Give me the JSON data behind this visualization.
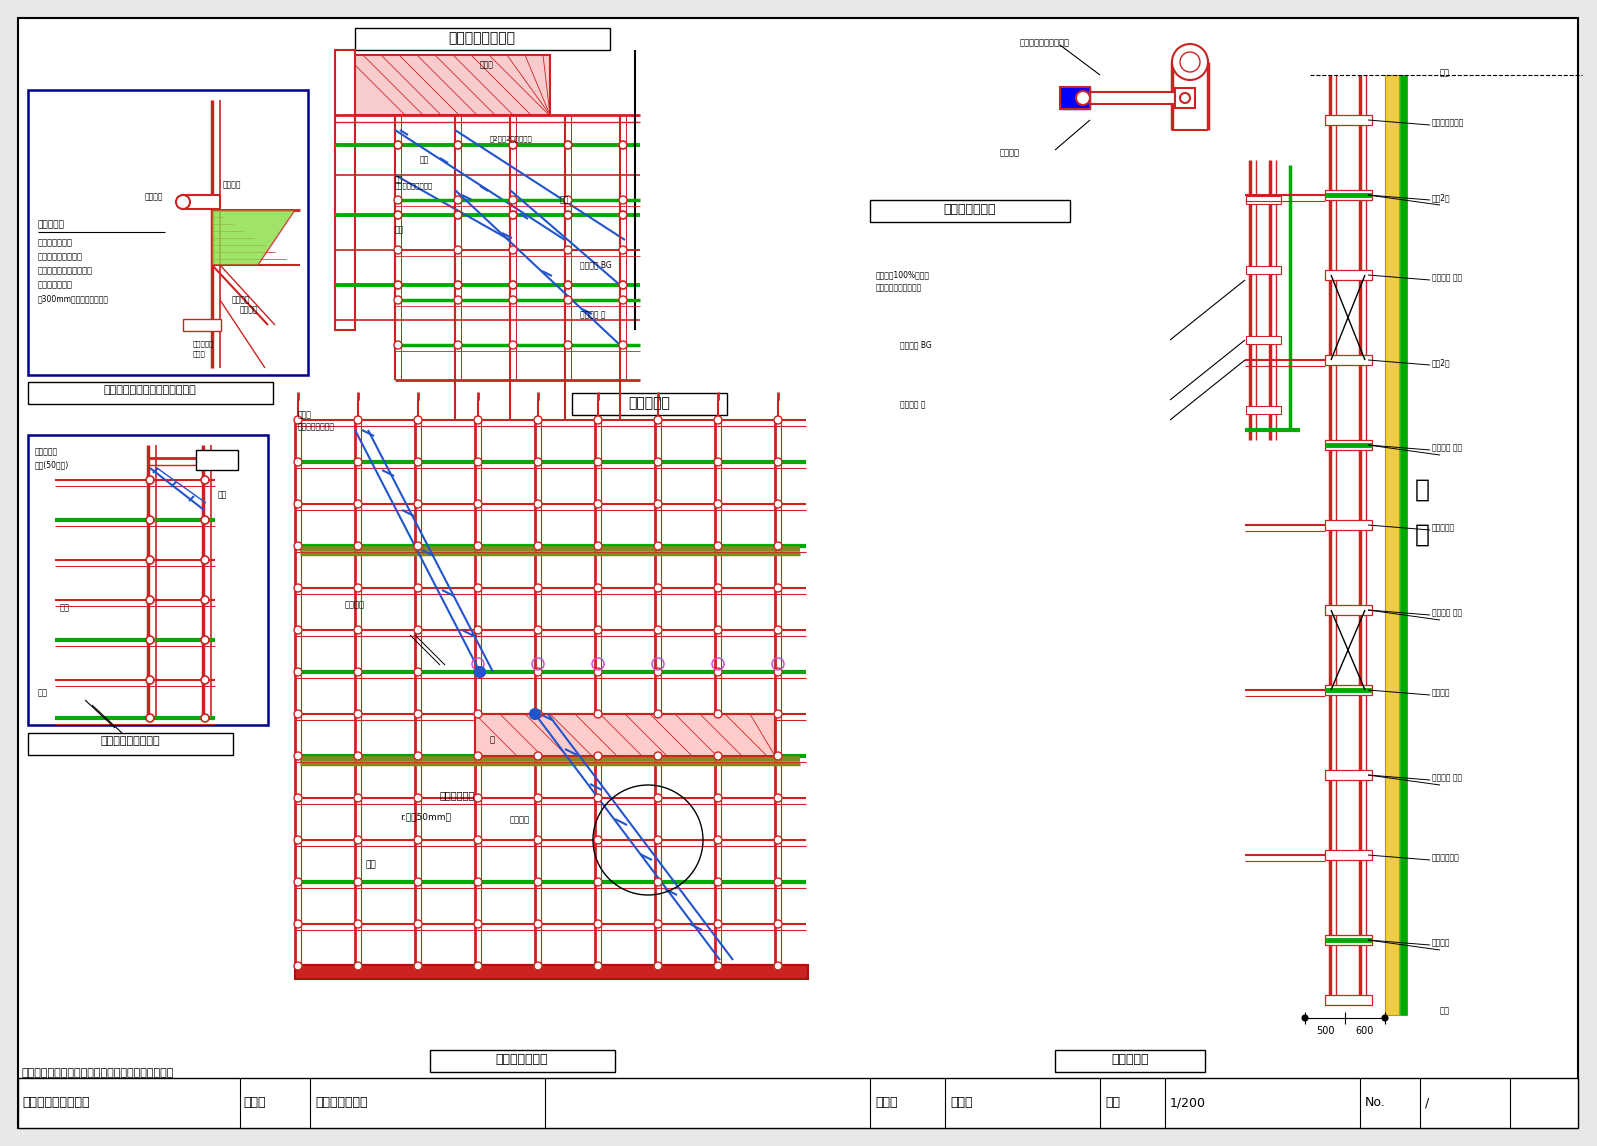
{
  "bg_color": "#e8e8e8",
  "page_bg": "#ffffff",
  "red": "#cc2222",
  "dark_red": "#aa1111",
  "blue": "#2255cc",
  "green": "#00aa00",
  "dark_green": "#007700",
  "olive": "#888822",
  "black": "#000000",
  "yellow": "#eecc44",
  "pink_purple": "#cc44cc",
  "navy": "#000088",
  "title_texts": {
    "top_center_box": "足場頂上部詳細図",
    "mid_left_box": "足場ブラケットによる隙間塞ぎ",
    "wall_box": "壁つなぎ詳細図",
    "stair_box": "階段詳細図",
    "bot_left_box": "屋上渡りかん詳細図",
    "bot_center_label": "梁枠部材組立図",
    "bot_right_label": "断面詳細図"
  },
  "footer": {
    "company": "株式会社　日向建設",
    "project_label": "工事名",
    "project": "大規模修繕工事",
    "drawing_label": "図面名",
    "drawing": "詳細図",
    "scale_label": "縮尺",
    "scale": "1/200",
    "no_label": "No.",
    "no": "/"
  },
  "note_text": "各段巾木かラッセルネット等で落下養生をします。"
}
